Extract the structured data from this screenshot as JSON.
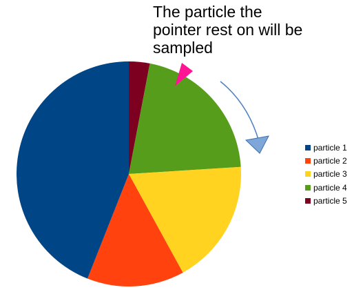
{
  "chart_data": {
    "type": "pie",
    "title": "",
    "annotation": "The particle the\npointer rest on will be\nsampled",
    "categories": [
      "particle 1",
      "particle 2",
      "particle 3",
      "particle 4",
      "particle 5"
    ],
    "values": [
      44,
      14,
      18,
      21,
      3
    ],
    "colors": [
      "#004586",
      "#ff420e",
      "#ffd320",
      "#579d1c",
      "#7e0021"
    ],
    "legend_position": "right",
    "pointer_color": "#ff1493",
    "arrow_color": "#4a7fc1"
  }
}
